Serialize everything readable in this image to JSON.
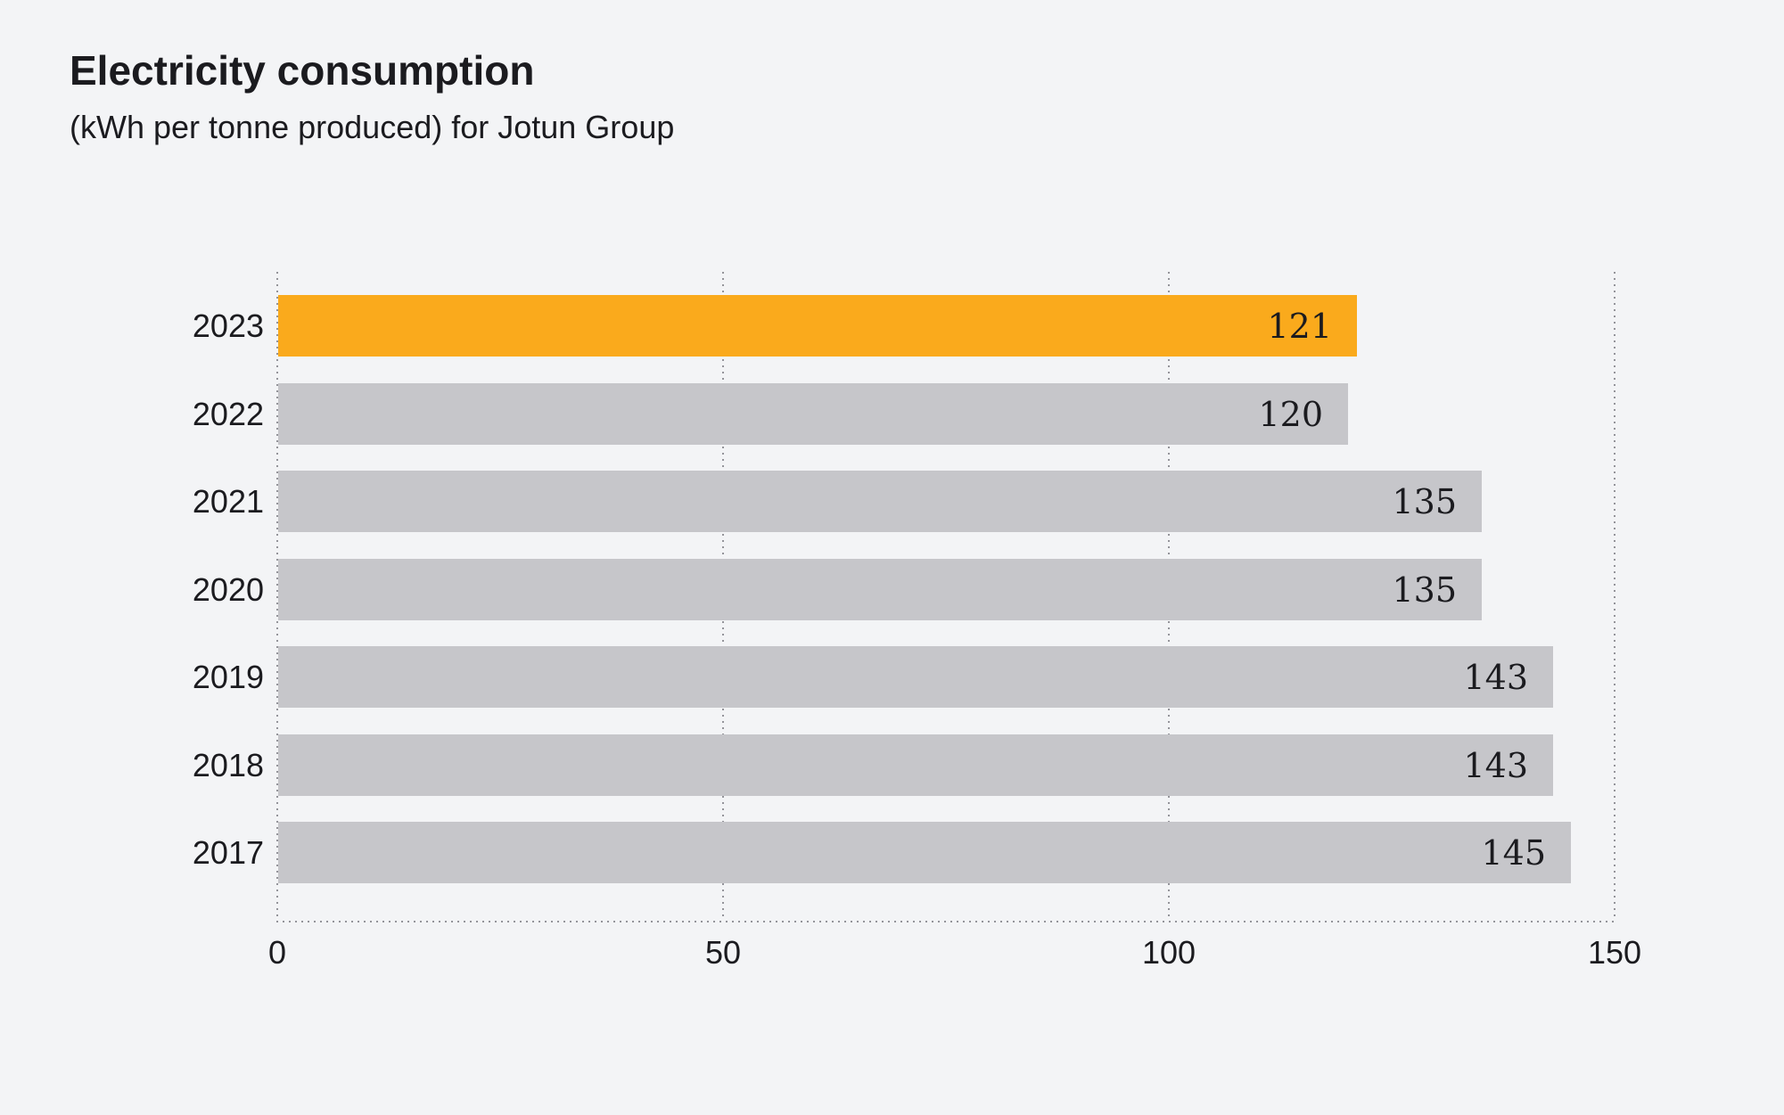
{
  "chart_data": {
    "type": "bar",
    "orientation": "horizontal",
    "title": "Electricity consumption",
    "subtitle": "(kWh per tonne produced) for Jotun Group",
    "categories": [
      "2023",
      "2022",
      "2021",
      "2020",
      "2019",
      "2018",
      "2017"
    ],
    "values": [
      121,
      120,
      135,
      135,
      143,
      143,
      145
    ],
    "xlim": [
      0,
      150
    ],
    "x_ticks": [
      0,
      50,
      100,
      150
    ],
    "grid": "dotted vertical gridlines at ticks, dotted baseline",
    "legend": "none",
    "highlight_category": "2023",
    "colors": {
      "highlight_bar": "#FAAA1C",
      "default_bar": "#C6C6CA",
      "background": "#F3F4F6",
      "text": "#1B1B1F",
      "grid": "#94949A"
    }
  }
}
